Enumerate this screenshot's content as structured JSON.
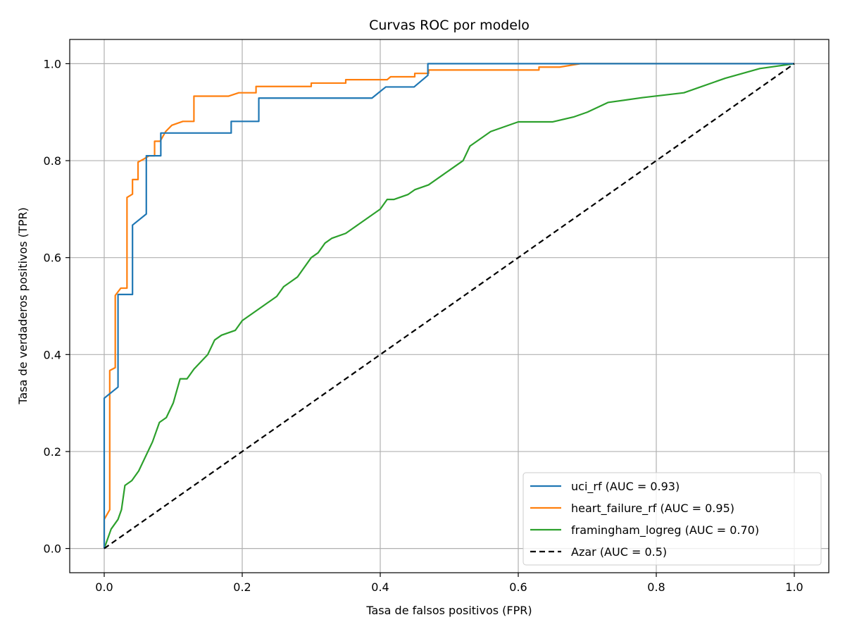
{
  "chart_data": {
    "type": "line",
    "title": "Curvas ROC por modelo",
    "xlabel": "Tasa de falsos positivos (FPR)",
    "ylabel": "Tasa de verdaderos positivos (TPR)",
    "xlim": [
      -0.05,
      1.05
    ],
    "ylim": [
      -0.05,
      1.05
    ],
    "xticks": [
      0.0,
      0.2,
      0.4,
      0.6,
      0.8,
      1.0
    ],
    "xtick_labels": [
      "0.0",
      "0.2",
      "0.4",
      "0.6",
      "0.8",
      "1.0"
    ],
    "yticks": [
      0.0,
      0.2,
      0.4,
      0.6,
      0.8,
      1.0
    ],
    "ytick_labels": [
      "0.0",
      "0.2",
      "0.4",
      "0.6",
      "0.8",
      "1.0"
    ],
    "grid": true,
    "legend_position": "lower-right",
    "series": [
      {
        "name": "uci_rf (AUC = 0.93)",
        "color": "#1f77b4",
        "style": "solid",
        "x": [
          0.0,
          0.0,
          0.0,
          0.02,
          0.02,
          0.041,
          0.041,
          0.061,
          0.061,
          0.082,
          0.082,
          0.184,
          0.184,
          0.224,
          0.224,
          0.388,
          0.408,
          0.449,
          0.469,
          0.469,
          0.694,
          1.0
        ],
        "y": [
          0.0,
          0.06,
          0.31,
          0.333,
          0.524,
          0.524,
          0.667,
          0.69,
          0.81,
          0.81,
          0.857,
          0.857,
          0.881,
          0.881,
          0.929,
          0.929,
          0.952,
          0.952,
          0.976,
          1.0,
          1.0,
          1.0
        ]
      },
      {
        "name": "heart_failure_rf (AUC = 0.95)",
        "color": "#ff7f0e",
        "style": "solid",
        "x": [
          0.0,
          0.0,
          0.008,
          0.008,
          0.016,
          0.016,
          0.024,
          0.024,
          0.033,
          0.033,
          0.041,
          0.041,
          0.049,
          0.049,
          0.057,
          0.057,
          0.065,
          0.073,
          0.073,
          0.081,
          0.089,
          0.098,
          0.114,
          0.13,
          0.13,
          0.163,
          0.18,
          0.195,
          0.22,
          0.22,
          0.3,
          0.3,
          0.35,
          0.35,
          0.41,
          0.415,
          0.45,
          0.45,
          0.47,
          0.47,
          0.6,
          0.63,
          0.63,
          0.66,
          0.66,
          0.69,
          1.0
        ],
        "y": [
          0.0,
          0.06,
          0.08,
          0.367,
          0.373,
          0.522,
          0.537,
          0.537,
          0.537,
          0.724,
          0.731,
          0.761,
          0.761,
          0.797,
          0.803,
          0.803,
          0.81,
          0.81,
          0.84,
          0.84,
          0.86,
          0.873,
          0.881,
          0.881,
          0.933,
          0.933,
          0.933,
          0.94,
          0.94,
          0.953,
          0.953,
          0.96,
          0.96,
          0.967,
          0.967,
          0.973,
          0.973,
          0.98,
          0.98,
          0.987,
          0.987,
          0.987,
          0.993,
          0.993,
          0.993,
          1.0,
          1.0
        ]
      },
      {
        "name": "framingham_logreg (AUC = 0.70)",
        "color": "#2ca02c",
        "style": "solid",
        "x": [
          0.0,
          0.01,
          0.02,
          0.025,
          0.03,
          0.04,
          0.05,
          0.06,
          0.07,
          0.08,
          0.09,
          0.1,
          0.11,
          0.12,
          0.13,
          0.15,
          0.16,
          0.17,
          0.19,
          0.2,
          0.22,
          0.23,
          0.25,
          0.26,
          0.27,
          0.28,
          0.3,
          0.31,
          0.32,
          0.33,
          0.35,
          0.36,
          0.37,
          0.38,
          0.4,
          0.41,
          0.42,
          0.44,
          0.45,
          0.47,
          0.49,
          0.5,
          0.52,
          0.53,
          0.54,
          0.55,
          0.56,
          0.58,
          0.6,
          0.62,
          0.65,
          0.68,
          0.7,
          0.73,
          0.78,
          0.84,
          0.86,
          0.9,
          0.95,
          1.0
        ],
        "y": [
          0.0,
          0.04,
          0.06,
          0.08,
          0.13,
          0.14,
          0.16,
          0.19,
          0.22,
          0.26,
          0.27,
          0.3,
          0.35,
          0.35,
          0.37,
          0.4,
          0.43,
          0.44,
          0.45,
          0.47,
          0.49,
          0.5,
          0.52,
          0.54,
          0.55,
          0.56,
          0.6,
          0.61,
          0.63,
          0.64,
          0.65,
          0.66,
          0.67,
          0.68,
          0.7,
          0.72,
          0.72,
          0.73,
          0.74,
          0.75,
          0.77,
          0.78,
          0.8,
          0.83,
          0.84,
          0.85,
          0.86,
          0.87,
          0.88,
          0.88,
          0.88,
          0.89,
          0.9,
          0.92,
          0.93,
          0.94,
          0.95,
          0.97,
          0.99,
          1.0
        ]
      },
      {
        "name": "Azar (AUC = 0.5)",
        "color": "#000000",
        "style": "dashed",
        "x": [
          0.0,
          1.0
        ],
        "y": [
          0.0,
          1.0
        ]
      }
    ]
  }
}
